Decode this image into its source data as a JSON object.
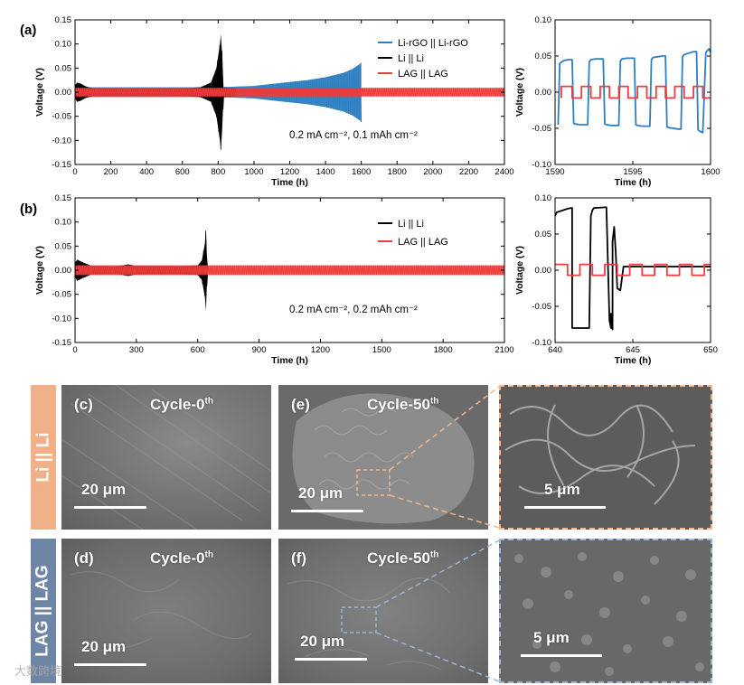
{
  "colors": {
    "rgo": "#2f7fc0",
    "li": "#000000",
    "lag": "#ee3b3b",
    "li_tab": "#f0b088",
    "lag_tab": "#6e85a6",
    "li_frame": "#f2b78f",
    "lag_frame": "#9db4d2"
  },
  "chart_data": [
    {
      "id": "a-main",
      "panel_label": "(a)",
      "type": "line",
      "xlabel": "Time (h)",
      "ylabel": "Voltage (V)",
      "xlim": [
        0,
        2400
      ],
      "ylim": [
        -0.15,
        0.15
      ],
      "xticks": [
        0,
        200,
        400,
        600,
        800,
        1000,
        1200,
        1400,
        1600,
        1800,
        2000,
        2200,
        2400
      ],
      "yticks": [
        -0.15,
        -0.1,
        -0.05,
        0.0,
        0.05,
        0.1,
        0.15
      ],
      "condition_text": "0.2 mA cm⁻², 0.1 mAh cm⁻²",
      "legend_position": "top-right",
      "series": [
        {
          "name": "Li-rGO || Li-rGO",
          "color_key": "rgo",
          "envelope": [
            [
              0,
              0.01
            ],
            [
              800,
              0.01
            ],
            [
              1000,
              0.013
            ],
            [
              1100,
              0.017
            ],
            [
              1200,
              0.021
            ],
            [
              1300,
              0.025
            ],
            [
              1400,
              0.031
            ],
            [
              1500,
              0.04
            ],
            [
              1550,
              0.048
            ],
            [
              1590,
              0.058
            ],
            [
              1600,
              0.062
            ]
          ]
        },
        {
          "name": "Li || Li",
          "color_key": "li",
          "envelope": [
            [
              0,
              0.012
            ],
            [
              10,
              0.02
            ],
            [
              30,
              0.018
            ],
            [
              60,
              0.012
            ],
            [
              100,
              0.008
            ],
            [
              300,
              0.007
            ],
            [
              600,
              0.008
            ],
            [
              700,
              0.01
            ],
            [
              760,
              0.02
            ],
            [
              790,
              0.05
            ],
            [
              810,
              0.1
            ],
            [
              815,
              0.12
            ],
            [
              822,
              0.08
            ],
            [
              830,
              0.01
            ],
            [
              900,
              0.008
            ]
          ]
        },
        {
          "name": "LAG || LAG",
          "color_key": "lag",
          "envelope": [
            [
              0,
              0.009
            ],
            [
              2400,
              0.009
            ]
          ]
        }
      ]
    },
    {
      "id": "a-zoom",
      "type": "line",
      "xlabel": "Time (h)",
      "ylabel": "Voltage (V)",
      "xlim": [
        1590,
        1600
      ],
      "ylim": [
        -0.1,
        0.1
      ],
      "xticks": [
        1590,
        1595,
        1600
      ],
      "yticks": [
        -0.1,
        -0.05,
        0.0,
        0.05,
        0.1
      ],
      "series": [
        {
          "name": "Li-rGO || Li-rGO",
          "color_key": "rgo",
          "x": [
            1590.2,
            1590.3,
            1590.6,
            1590.9,
            1591.1,
            1591.2,
            1591.3,
            1591.6,
            1591.9,
            1592.1,
            1592.2,
            1592.3,
            1592.6,
            1592.9,
            1593.1,
            1593.2,
            1593.3,
            1593.6,
            1593.9,
            1594.1,
            1594.2,
            1594.3,
            1594.6,
            1594.9,
            1595.1,
            1595.2,
            1595.3,
            1595.6,
            1595.9,
            1596.1,
            1596.2,
            1596.3,
            1596.6,
            1596.9,
            1597.1,
            1597.2,
            1597.3,
            1597.6,
            1597.9,
            1598.1,
            1598.2,
            1598.3,
            1598.6,
            1598.9,
            1599.1,
            1599.2,
            1599.3,
            1599.5,
            1599.7,
            1599.9,
            1600.0
          ],
          "y": [
            -0.045,
            0.04,
            0.044,
            0.045,
            0.045,
            -0.043,
            -0.044,
            -0.045,
            -0.045,
            -0.045,
            0.042,
            0.045,
            0.046,
            0.046,
            0.046,
            -0.044,
            -0.045,
            -0.046,
            -0.046,
            -0.046,
            0.043,
            0.046,
            0.047,
            0.047,
            0.047,
            -0.045,
            -0.046,
            -0.047,
            -0.047,
            -0.047,
            0.045,
            0.048,
            0.049,
            0.05,
            0.05,
            -0.048,
            -0.049,
            -0.05,
            -0.051,
            -0.051,
            0.049,
            0.052,
            0.054,
            0.056,
            0.056,
            -0.052,
            -0.054,
            -0.056,
            0.055,
            0.06,
            0.055
          ]
        },
        {
          "name": "LAG || LAG",
          "color_key": "lag",
          "x": [
            1590.4,
            1590.4,
            1591.1,
            1591.1,
            1591.7,
            1591.7,
            1592.3,
            1592.3,
            1592.9,
            1592.9,
            1593.5,
            1593.5,
            1594.1,
            1594.1,
            1594.7,
            1594.7,
            1595.3,
            1595.3,
            1595.9,
            1595.9,
            1596.5,
            1596.5,
            1597.1,
            1597.1,
            1597.7,
            1597.7,
            1598.3,
            1598.3,
            1598.9,
            1598.9,
            1599.5,
            1599.5,
            1600.0
          ],
          "y": [
            -0.008,
            0.008,
            0.008,
            -0.008,
            -0.008,
            0.008,
            0.008,
            -0.008,
            -0.008,
            0.008,
            0.008,
            -0.008,
            -0.008,
            0.008,
            0.008,
            -0.008,
            -0.008,
            0.008,
            0.008,
            -0.008,
            -0.008,
            0.008,
            0.008,
            -0.008,
            -0.008,
            0.008,
            0.008,
            -0.008,
            -0.008,
            0.008,
            0.008,
            -0.008,
            -0.008
          ]
        }
      ]
    },
    {
      "id": "b-main",
      "panel_label": "(b)",
      "type": "line",
      "xlabel": "Time (h)",
      "ylabel": "Voltage (V)",
      "xlim": [
        0,
        2100
      ],
      "ylim": [
        -0.15,
        0.15
      ],
      "xticks": [
        0,
        300,
        600,
        900,
        1200,
        1500,
        1800,
        2100
      ],
      "yticks": [
        -0.15,
        -0.1,
        -0.05,
        0.0,
        0.05,
        0.1,
        0.15
      ],
      "condition_text": "0.2 mA cm⁻², 0.2 mAh cm⁻²",
      "legend_position": "top-right",
      "series": [
        {
          "name": "Li || Li",
          "color_key": "li",
          "envelope": [
            [
              0,
              0.014
            ],
            [
              10,
              0.022
            ],
            [
              40,
              0.016
            ],
            [
              80,
              0.009
            ],
            [
              200,
              0.008
            ],
            [
              260,
              0.012
            ],
            [
              300,
              0.009
            ],
            [
              500,
              0.008
            ],
            [
              600,
              0.01
            ],
            [
              620,
              0.02
            ],
            [
              635,
              0.055
            ],
            [
              640,
              0.085
            ],
            [
              645,
              0.03
            ],
            [
              650,
              0.005
            ]
          ]
        },
        {
          "name": "LAG || LAG",
          "color_key": "lag",
          "envelope": [
            [
              0,
              0.01
            ],
            [
              2100,
              0.01
            ]
          ]
        }
      ]
    },
    {
      "id": "b-zoom",
      "type": "line",
      "xlabel": "Time (h)",
      "ylabel": "Voltage (V)",
      "xlim": [
        640,
        650
      ],
      "ylim": [
        -0.1,
        0.1
      ],
      "xticks": [
        640,
        645,
        650
      ],
      "yticks": [
        -0.1,
        -0.05,
        0.0,
        0.05,
        0.1
      ],
      "series": [
        {
          "name": "Li || Li",
          "color_key": "li",
          "x": [
            640.0,
            640.1,
            640.8,
            641.0,
            641.1,
            641.1,
            641.8,
            642.0,
            642.2,
            642.3,
            642.4,
            642.5,
            643.2,
            643.3,
            643.5,
            643.6,
            643.6,
            643.7,
            643.7,
            643.8,
            643.9,
            644.0,
            644.2,
            644.4,
            645.0,
            646.0,
            647.0,
            648.0,
            649.0,
            650.0
          ],
          "y": [
            0.075,
            0.08,
            0.085,
            0.086,
            0.086,
            -0.08,
            -0.08,
            -0.08,
            -0.08,
            0.075,
            0.083,
            0.086,
            0.087,
            0.087,
            -0.07,
            -0.08,
            -0.06,
            -0.082,
            0.04,
            0.06,
            0.025,
            -0.025,
            -0.028,
            0.005,
            0.005,
            0.005,
            0.005,
            0.005,
            0.005,
            0.005
          ]
        },
        {
          "name": "LAG || LAG",
          "color_key": "lag",
          "x": [
            640.0,
            640.8,
            640.8,
            641.6,
            641.6,
            642.4,
            642.4,
            643.2,
            643.2,
            644.0,
            644.0,
            644.8,
            644.8,
            645.6,
            645.6,
            646.4,
            646.4,
            647.2,
            647.2,
            648.0,
            648.0,
            648.8,
            648.8,
            649.6,
            649.6,
            650.0
          ],
          "y": [
            0.008,
            0.008,
            -0.007,
            -0.007,
            0.008,
            0.008,
            -0.007,
            -0.007,
            0.008,
            0.008,
            -0.007,
            -0.007,
            0.008,
            0.008,
            -0.007,
            -0.007,
            0.008,
            0.008,
            -0.007,
            -0.007,
            0.008,
            0.008,
            -0.007,
            -0.007,
            0.008,
            0.008
          ]
        }
      ]
    }
  ],
  "sem": {
    "li_tab": "Li || Li",
    "lag_tab": "LAG || LAG",
    "c": {
      "letter": "(c)",
      "cycle": "Cycle-0",
      "sup": "th",
      "scale": "20 μm"
    },
    "e": {
      "letter": "(e)",
      "cycle": "Cycle-50",
      "sup": "th",
      "scale": "20 μm"
    },
    "e_zoom": {
      "scale": "5 μm"
    },
    "d": {
      "letter": "(d)",
      "cycle": "Cycle-0",
      "sup": "th",
      "scale": "20 μm"
    },
    "f": {
      "letter": "(f)",
      "cycle": "Cycle-50",
      "sup": "th",
      "scale": "20 μm"
    },
    "f_zoom": {
      "scale": "5 μm"
    }
  },
  "watermark": "大数跨境"
}
